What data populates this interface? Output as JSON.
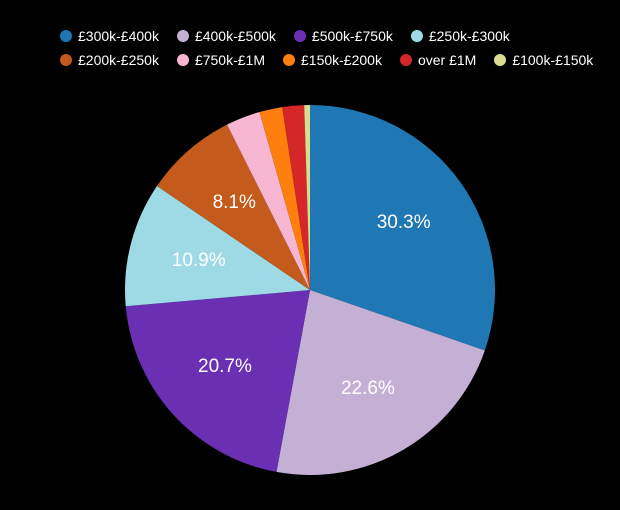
{
  "chart": {
    "type": "pie",
    "background_color": "#000000",
    "legend_text_color": "#ffffff",
    "label_text_color": "#ffffff",
    "legend_fontsize": 14,
    "label_fontsize": 19,
    "pie_radius": 185,
    "label_radius": 115,
    "start_angle": -90,
    "slices": [
      {
        "label": "£300k-£400k",
        "value": 30.3,
        "color": "#1f77b4",
        "show_label": true
      },
      {
        "label": "£400k-£500k",
        "value": 22.6,
        "color": "#c5b0d5",
        "show_label": true
      },
      {
        "label": "£500k-£750k",
        "value": 20.7,
        "color": "#6b2fb3",
        "show_label": true
      },
      {
        "label": "£250k-£300k",
        "value": 10.9,
        "color": "#9edae5",
        "show_label": true
      },
      {
        "label": "£200k-£250k",
        "value": 8.1,
        "color": "#c45a1c",
        "show_label": true
      },
      {
        "label": "£750k-£1M",
        "value": 3.0,
        "color": "#f7b6d2",
        "show_label": false
      },
      {
        "label": "£150k-£200k",
        "value": 2.0,
        "color": "#ff7f0e",
        "show_label": false
      },
      {
        "label": "over £1M",
        "value": 1.9,
        "color": "#d62728",
        "show_label": false
      },
      {
        "label": "£100k-£150k",
        "value": 0.5,
        "color": "#dbdb8d",
        "show_label": false
      }
    ]
  }
}
